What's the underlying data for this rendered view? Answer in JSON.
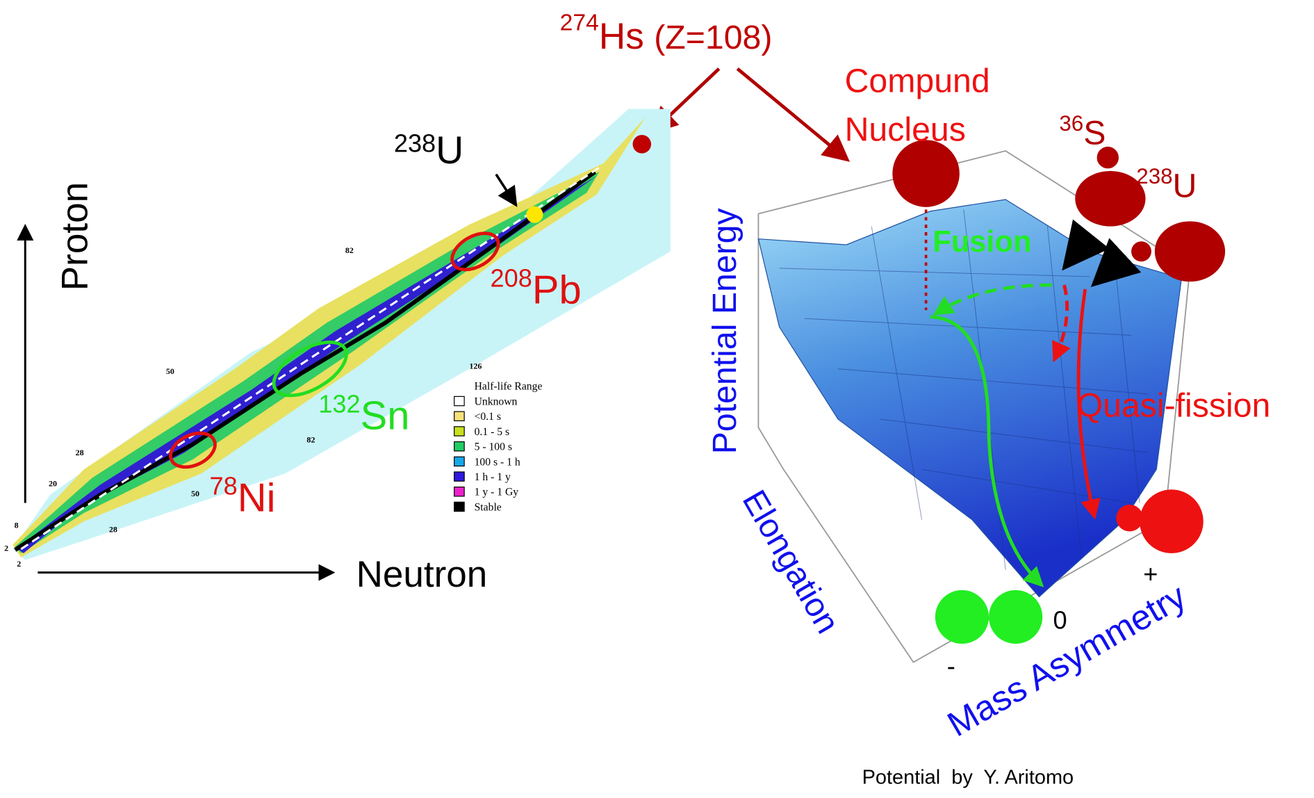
{
  "title": {
    "mass": "274",
    "symbol": "Hs",
    "charge": "(Z=108)"
  },
  "nuclide_chart": {
    "y_axis": "Proton",
    "x_axis": "Neutron",
    "labels": {
      "u238": {
        "mass": "238",
        "symbol": "U"
      },
      "pb208": {
        "mass": "208",
        "symbol": "Pb"
      },
      "sn132": {
        "mass": "132",
        "symbol": "Sn"
      },
      "ni78": {
        "mass": "78",
        "symbol": "Ni"
      }
    },
    "magic_numbers": [
      "2",
      "8",
      "20",
      "28",
      "50",
      "82",
      "28",
      "50",
      "82",
      "126",
      "2"
    ],
    "legend": {
      "title": "Half-life Range",
      "items": [
        "Unknown",
        "<0.1 s",
        "0.1 - 5 s",
        "5  - 100 s",
        "100 s - 1 h",
        "1 h - 1 y",
        "1 y - 1 Gy",
        "Stable"
      ]
    }
  },
  "surface": {
    "compound": [
      "Compund",
      "Nucleus"
    ],
    "projectile": {
      "mass": "36",
      "symbol": "S"
    },
    "target": {
      "mass": "238",
      "symbol": "U"
    },
    "fusion": "Fusion",
    "quasi_fission": "Quasi-fission",
    "z_axis": "Potential Energy",
    "x_axis": "Elongation",
    "y_axis": "Mass Asymmetry",
    "asym_ticks": [
      "+",
      "0",
      "-"
    ],
    "credit": "Potential  by  Y. Aritomo"
  }
}
